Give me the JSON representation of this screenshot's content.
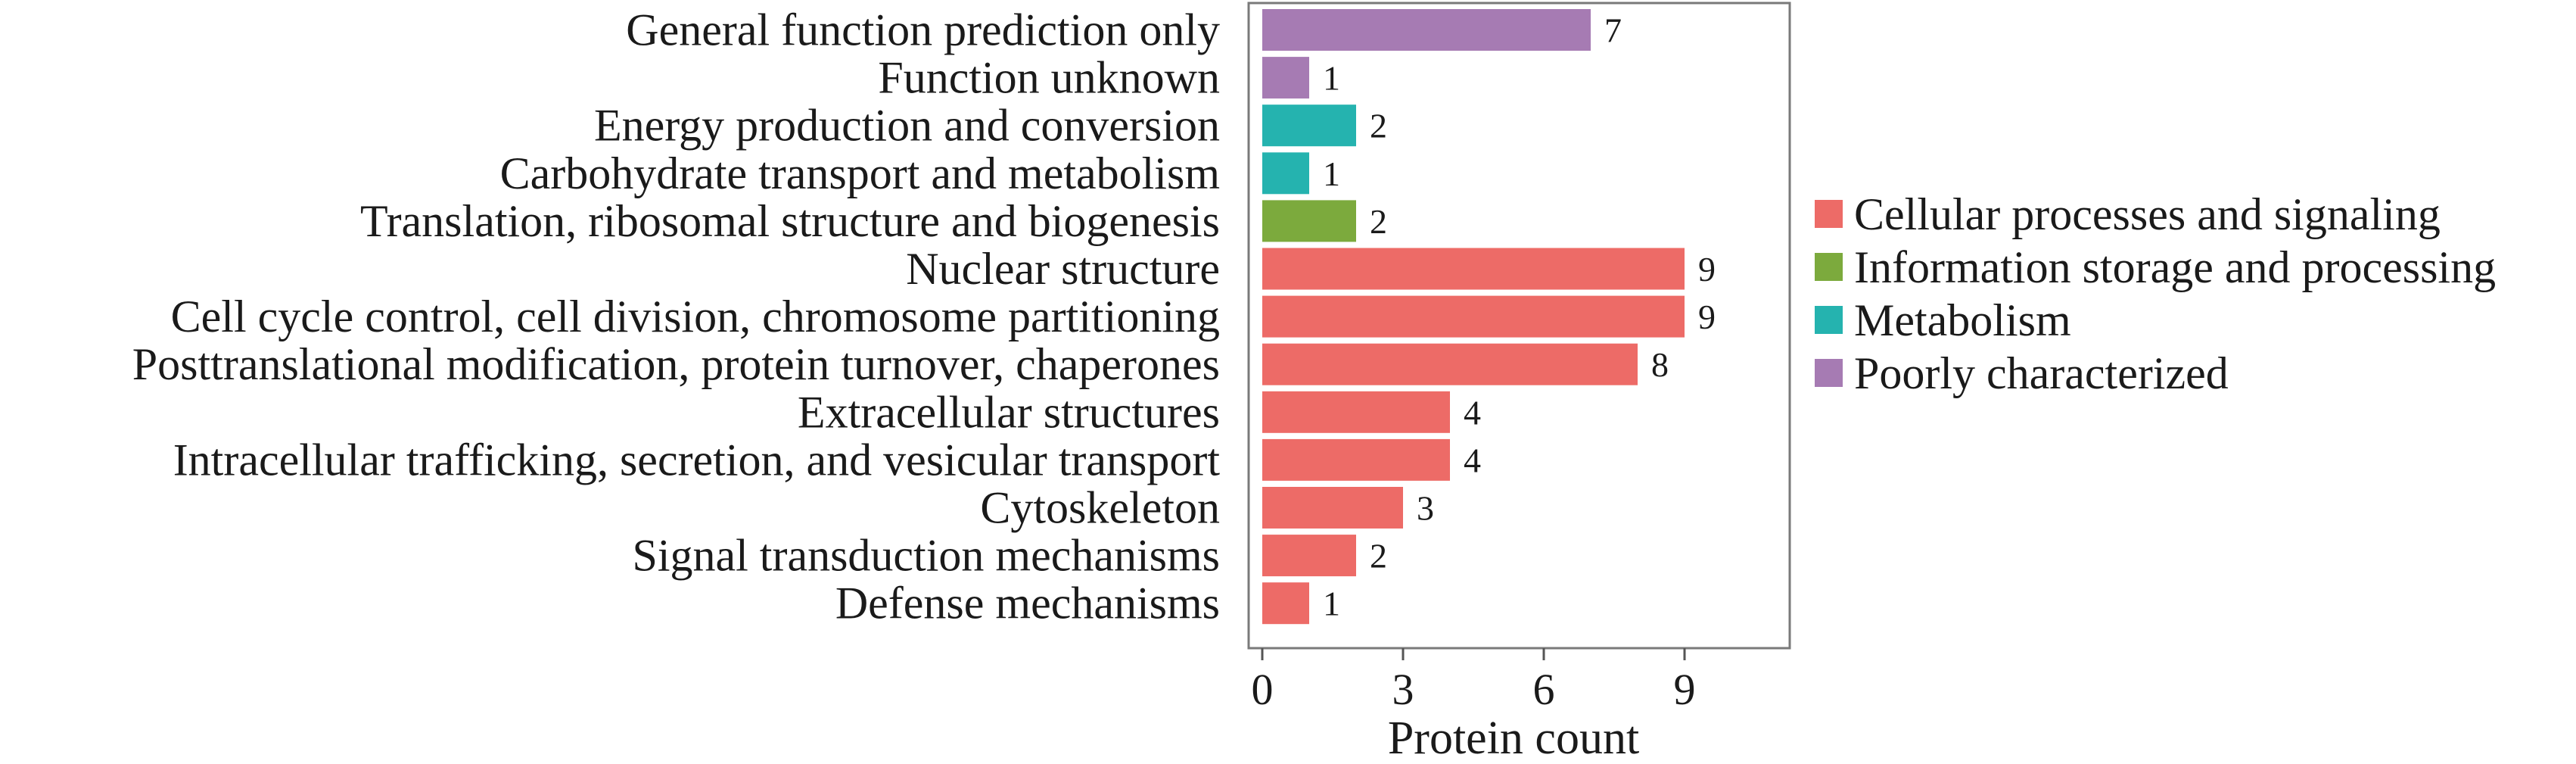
{
  "chart_data": {
    "type": "bar",
    "orientation": "horizontal",
    "title": "",
    "xlabel": "Protein count",
    "ylabel": "",
    "xlim": [
      0,
      11.3
    ],
    "xticks": [
      "0",
      "3",
      "6",
      "9"
    ],
    "grid": false,
    "legend_position": "right",
    "categories": [
      "General function prediction only",
      "Function unknown",
      "Energy production and conversion",
      "Carbohydrate transport and metabolism",
      "Translation, ribosomal structure and biogenesis",
      "Nuclear structure",
      "Cell cycle control, cell division, chromosome partitioning",
      "Posttranslational modification, protein turnover, chaperones",
      "Extracellular structures",
      "Intracellular trafficking, secretion, and vesicular transport",
      "Cytoskeleton",
      "Signal transduction mechanisms",
      "Defense mechanisms"
    ],
    "values": [
      7,
      1,
      2,
      1,
      2,
      9,
      9,
      8,
      4,
      4,
      3,
      2,
      1
    ],
    "groups": [
      "Poorly characterized",
      "Poorly characterized",
      "Metabolism",
      "Metabolism",
      "Information storage and processing",
      "Cellular processes and signaling",
      "Cellular processes and signaling",
      "Cellular processes and signaling",
      "Cellular processes and signaling",
      "Cellular processes and signaling",
      "Cellular processes and signaling",
      "Cellular processes and signaling",
      "Cellular processes and signaling"
    ],
    "legend": [
      {
        "name": "Cellular processes and signaling",
        "color": "#ED6B67"
      },
      {
        "name": "Information storage and processing",
        "color": "#7CAA3D"
      },
      {
        "name": "Metabolism",
        "color": "#25B3AF"
      },
      {
        "name": "Poorly characterized",
        "color": "#A67BB3"
      }
    ]
  }
}
